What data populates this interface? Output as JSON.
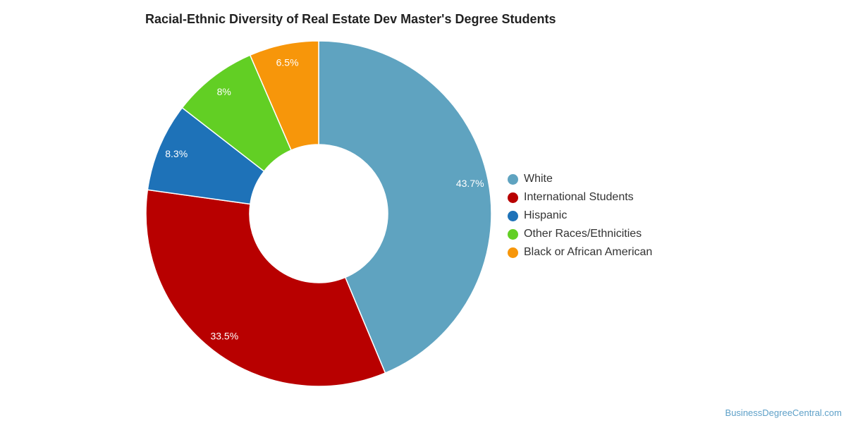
{
  "chart_data": {
    "type": "pie",
    "title": "Racial-Ethnic Diversity of Real Estate Dev Master's Degree Students",
    "unit": "%",
    "legend_position": "right",
    "slices": [
      {
        "label": "White",
        "value": 43.7,
        "display": "43.7%",
        "color": "#5fa3c0"
      },
      {
        "label": "International Students",
        "value": 33.5,
        "display": "33.5%",
        "color": "#b80000"
      },
      {
        "label": "Hispanic",
        "value": 8.3,
        "display": "8.3%",
        "color": "#1e72b8"
      },
      {
        "label": "Other Races/Ethnicities",
        "value": 8,
        "display": "8%",
        "color": "#62cf24"
      },
      {
        "label": "Black or African American",
        "value": 6.5,
        "display": "6.5%",
        "color": "#f7960a"
      }
    ]
  },
  "footer": {
    "watermark": "BusinessDegreeCentral.com"
  }
}
